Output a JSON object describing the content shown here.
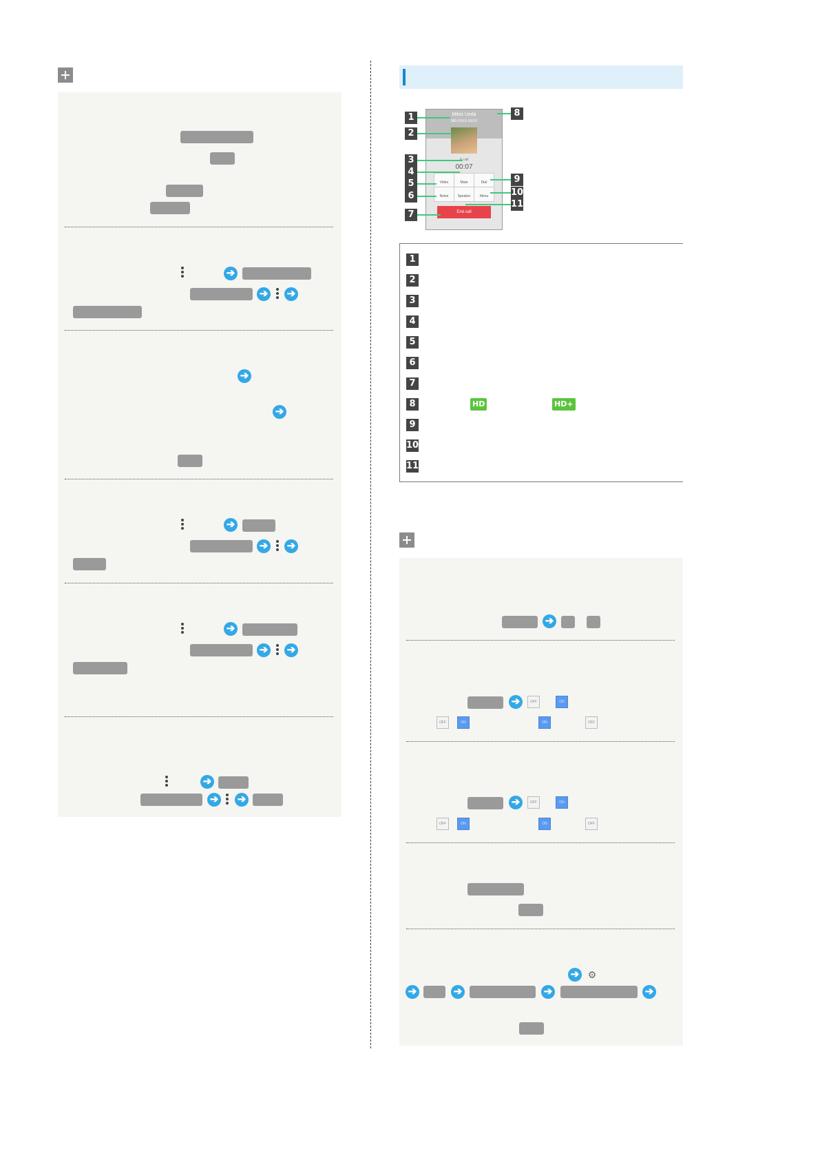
{
  "phone": {
    "caller_name": "Mikio Ueda",
    "caller_number": "080-XXXX-XXXX",
    "call_status": "In call",
    "call_timer": "00:07",
    "buttons": [
      "Video",
      "Mute",
      "Dial",
      "Noise Reduce",
      "Speaker",
      "Menu"
    ],
    "end_call_label": "End call"
  },
  "callouts": [
    "1",
    "2",
    "3",
    "4",
    "5",
    "6",
    "7",
    "8",
    "9",
    "10",
    "11"
  ],
  "hd_icons": [
    "HD",
    "HD+"
  ],
  "toggle_labels": {
    "off": "OFF",
    "on": "ON"
  },
  "colors": {
    "accent": "#33a8e6",
    "callout_green": "#3fc880",
    "hd_green": "#5bc43c",
    "end_call_red": "#e8434a",
    "header_band": "#dff0fb"
  }
}
